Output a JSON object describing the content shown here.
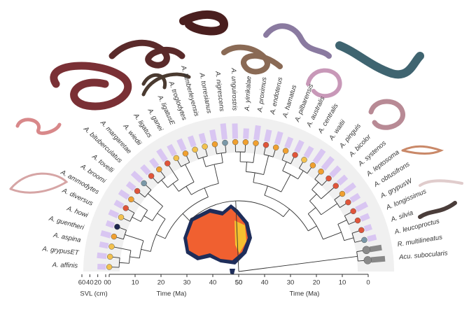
{
  "figure": {
    "tips": [
      {
        "name": "A. affinis",
        "color": "#f2c14e",
        "svl": 21
      },
      {
        "name": "A. grypusET",
        "color": "#f2c14e",
        "svl": 24
      },
      {
        "name": "A. aspina",
        "color": "#f2c14e",
        "svl": 22
      },
      {
        "name": "A. guentheri",
        "color": "#f0a030",
        "svl": 25
      },
      {
        "name": "A. howi",
        "color": "#1e2750",
        "svl": 20
      },
      {
        "name": "A. diversus",
        "color": "#f2c14e",
        "svl": 24
      },
      {
        "name": "A. ammodytes",
        "color": "#e0553a",
        "svl": 22
      },
      {
        "name": "A. broomi",
        "color": "#f0a030",
        "svl": 26
      },
      {
        "name": "A. tovelli",
        "color": "#e0553a",
        "svl": 22
      },
      {
        "name": "A. bituberculatus",
        "color": "#7a98a8",
        "svl": 30
      },
      {
        "name": "A. margaretae",
        "color": "#e0553a",
        "svl": 25
      },
      {
        "name": "A. wiedii",
        "color": "#f0a030",
        "svl": 23
      },
      {
        "name": "A. ligatus",
        "color": "#e0553a",
        "svl": 32
      },
      {
        "name": "A. ganei",
        "color": "#f2c14e",
        "svl": 28
      },
      {
        "name": "A. ligatusE",
        "color": "#f0a030",
        "svl": 30
      },
      {
        "name": "A. troglodytes",
        "color": "#f2c14e",
        "svl": 27
      },
      {
        "name": "A. kimberleyensis",
        "color": "#f2c14e",
        "svl": 25
      },
      {
        "name": "A. torresianus",
        "color": "#f0a030",
        "svl": 28
      },
      {
        "name": "A. nigrescens",
        "color": "#7a98a8",
        "svl": 40
      },
      {
        "name": "A. unguirostris",
        "color": "#f0a030",
        "svl": 38
      },
      {
        "name": "A. yirrikalae",
        "color": "#f0a030",
        "svl": 26
      },
      {
        "name": "A. proximus",
        "color": "#f0a030",
        "svl": 36
      },
      {
        "name": "A. endoterus",
        "color": "#e0553a",
        "svl": 30
      },
      {
        "name": "A. hamatus",
        "color": "#f0a030",
        "svl": 32
      },
      {
        "name": "A. pilbarensis",
        "color": "#f0a030",
        "svl": 27
      },
      {
        "name": "A. australis",
        "color": "#e0553a",
        "svl": 30
      },
      {
        "name": "A. centralis",
        "color": "#f2c14e",
        "svl": 28
      },
      {
        "name": "A. waitii",
        "color": "#f0a030",
        "svl": 38
      },
      {
        "name": "A. pinguis",
        "color": "#f0a030",
        "svl": 36
      },
      {
        "name": "A. bicolor",
        "color": "#e0553a",
        "svl": 30
      },
      {
        "name": "A. systenos",
        "color": "#e0553a",
        "svl": 26
      },
      {
        "name": "A. leptosoma",
        "color": "#f0a030",
        "svl": 30
      },
      {
        "name": "A. obtusifrons",
        "color": "#e0553a",
        "svl": 24
      },
      {
        "name": "A. grypusW",
        "color": "#e0553a",
        "svl": 30
      },
      {
        "name": "A. longissimus",
        "color": "#e0553a",
        "svl": 22
      },
      {
        "name": "A. silvia",
        "color": "#e0553a",
        "svl": 18
      },
      {
        "name": "A. leucoproctus",
        "color": "#7a98a8",
        "svl": 22
      },
      {
        "name": "R. multilineatus",
        "color": "#8a8a8a",
        "svl": 30
      },
      {
        "name": "Acu. subocularis",
        "color": "#8a8a8a",
        "svl": 35
      }
    ],
    "time_axis": {
      "label": "Time (Ma)",
      "lim": [
        0,
        50
      ],
      "ticks": [
        0,
        10,
        20,
        30,
        40,
        50
      ]
    },
    "svl_axis": {
      "label": "SVL (cm)",
      "lim": [
        0,
        60
      ],
      "ticks": [
        60,
        40,
        20,
        0
      ]
    }
  }
}
